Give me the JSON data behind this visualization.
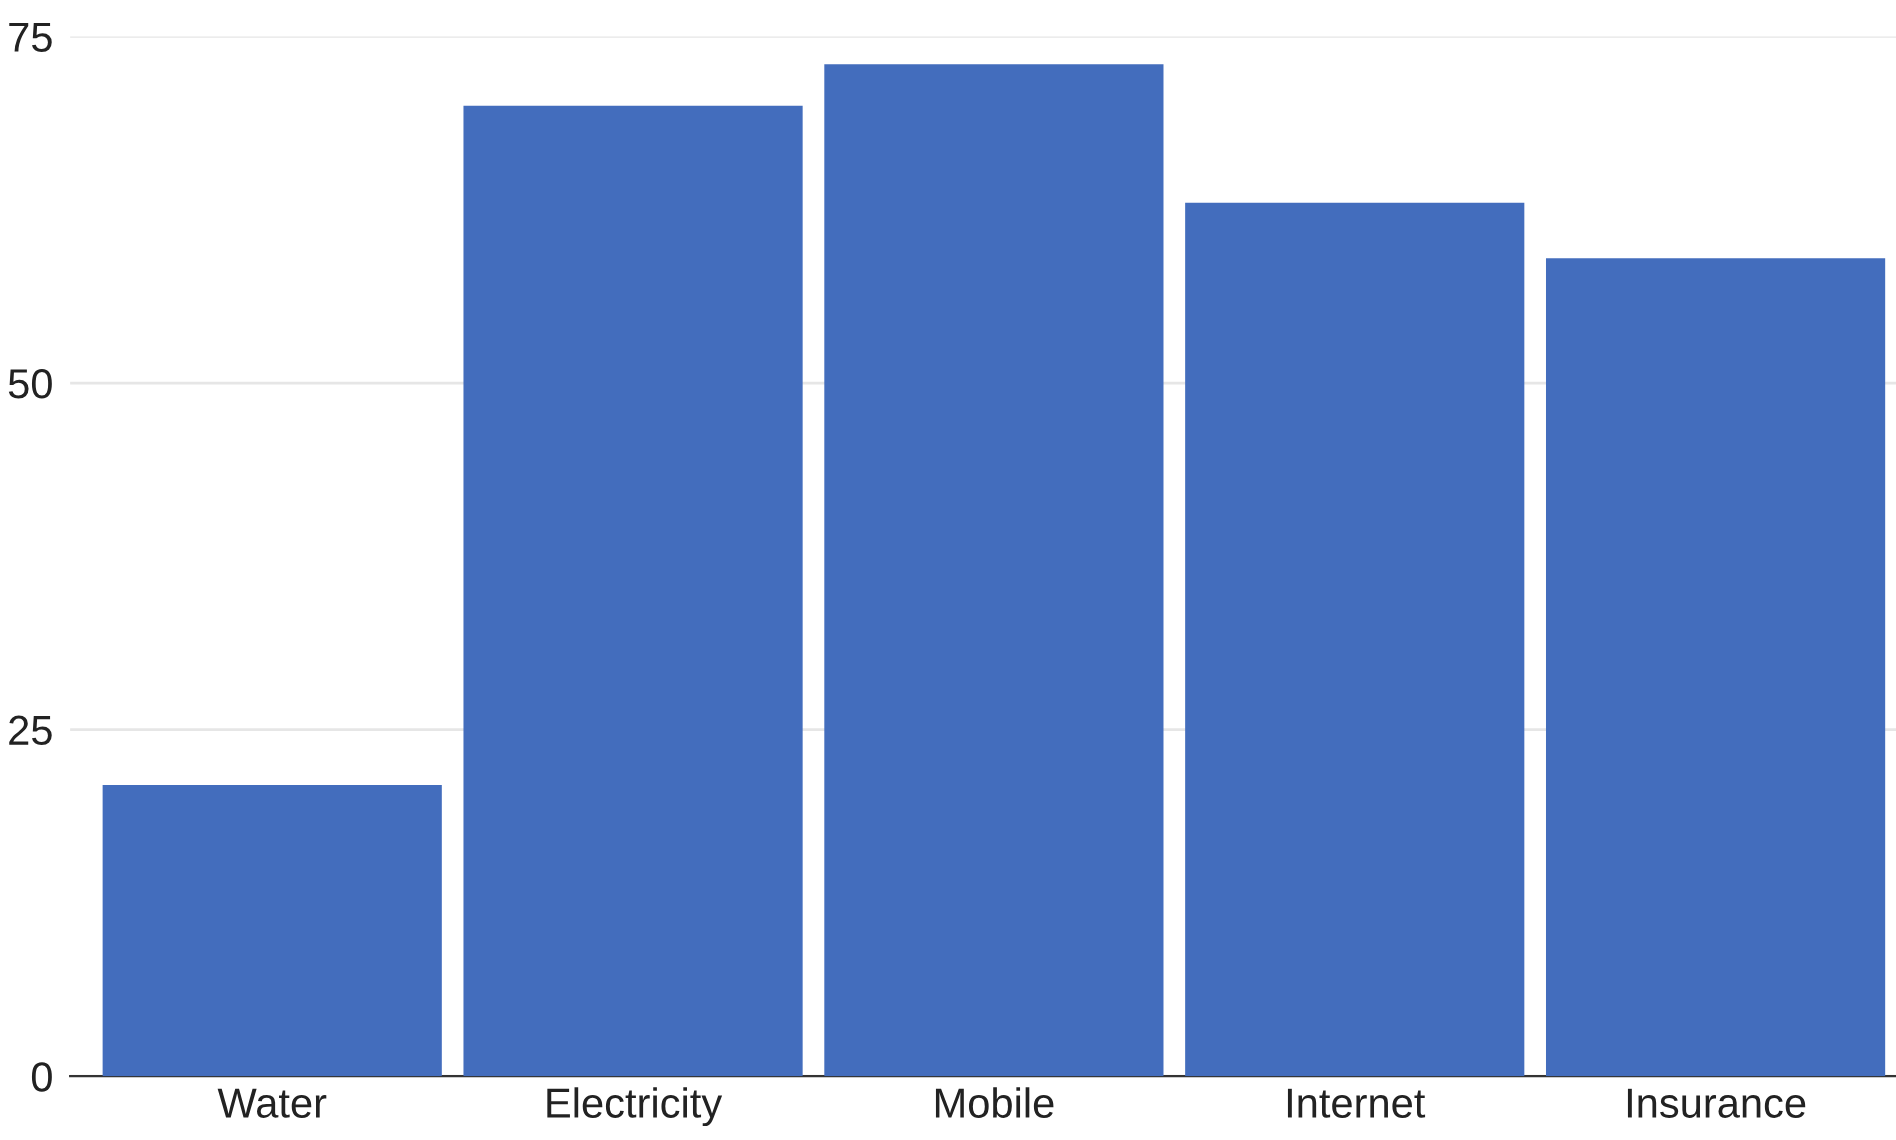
{
  "chart_data": {
    "type": "bar",
    "categories": [
      "Water",
      "Electricity",
      "Mobile",
      "Internet",
      "Insurance"
    ],
    "values": [
      21,
      70,
      73,
      63,
      59
    ],
    "color": "#436dbd",
    "ylim": [
      0,
      75
    ],
    "yticks": [
      0,
      25,
      50,
      75
    ],
    "grid": "y"
  }
}
